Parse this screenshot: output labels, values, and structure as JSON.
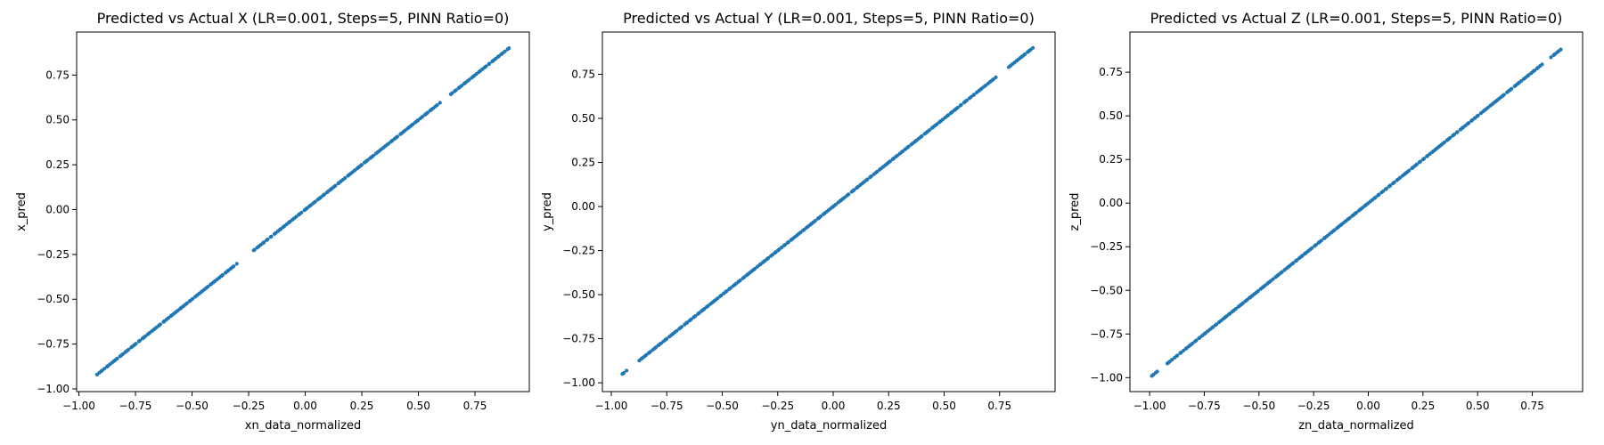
{
  "chart_data": [
    {
      "type": "scatter",
      "title": "Predicted vs Actual X (LR=0.001, Steps=5, PINN Ratio=0)",
      "xlabel": "xn_data_normalized",
      "ylabel": "x_pred",
      "xlim": [
        -1.01,
        0.99
      ],
      "ylim": [
        -1.015,
        0.99
      ],
      "xticks": [
        -1.0,
        -0.75,
        -0.5,
        -0.25,
        0.0,
        0.25,
        0.5,
        0.75
      ],
      "yticks": [
        -1.0,
        -0.75,
        -0.5,
        -0.25,
        0.0,
        0.25,
        0.5,
        0.75
      ],
      "xtick_labels": [
        "−1.00",
        "−0.75",
        "−0.50",
        "−0.25",
        "0.00",
        "0.25",
        "0.50",
        "0.75"
      ],
      "ytick_labels": [
        "−1.00",
        "−0.75",
        "−0.50",
        "−0.25",
        "0.00",
        "0.25",
        "0.50",
        "0.75"
      ],
      "color": "#1f77b4",
      "grid": false,
      "points": {
        "range": [
          -0.92,
          0.9
        ],
        "count": 220,
        "slope": 1.0,
        "intercept": 0.0,
        "gaps": [
          [
            -0.3,
            -0.24
          ],
          [
            0.6,
            0.64
          ]
        ]
      }
    },
    {
      "type": "scatter",
      "title": "Predicted vs Actual Y (LR=0.001, Steps=5, PINN Ratio=0)",
      "xlabel": "yn_data_normalized",
      "ylabel": "y_pred",
      "xlim": [
        -1.04,
        1.0
      ],
      "ylim": [
        -1.05,
        0.99
      ],
      "xticks": [
        -1.0,
        -0.75,
        -0.5,
        -0.25,
        0.0,
        0.25,
        0.5,
        0.75
      ],
      "yticks": [
        -1.0,
        -0.75,
        -0.5,
        -0.25,
        0.0,
        0.25,
        0.5,
        0.75
      ],
      "xtick_labels": [
        "−1.00",
        "−0.75",
        "−0.50",
        "−0.25",
        "0.00",
        "0.25",
        "0.50",
        "0.75"
      ],
      "ytick_labels": [
        "−1.00",
        "−0.75",
        "−0.50",
        "−0.25",
        "0.00",
        "0.25",
        "0.50",
        "0.75"
      ],
      "color": "#1f77b4",
      "grid": false,
      "points": {
        "range": [
          -0.95,
          0.9
        ],
        "count": 220,
        "slope": 1.0,
        "intercept": 0.0,
        "gaps": [
          [
            -0.93,
            -0.88
          ],
          [
            0.74,
            0.79
          ]
        ]
      }
    },
    {
      "type": "scatter",
      "title": "Predicted vs Actual Z (LR=0.001, Steps=5, PINN Ratio=0)",
      "xlabel": "zn_data_normalized",
      "ylabel": "z_pred",
      "xlim": [
        -1.09,
        0.98
      ],
      "ylim": [
        -1.08,
        0.98
      ],
      "xticks": [
        -1.0,
        -0.75,
        -0.5,
        -0.25,
        0.0,
        0.25,
        0.5,
        0.75
      ],
      "yticks": [
        -1.0,
        -0.75,
        -0.5,
        -0.25,
        0.0,
        0.25,
        0.5,
        0.75
      ],
      "xtick_labels": [
        "−1.00",
        "−0.75",
        "−0.50",
        "−0.25",
        "0.00",
        "0.25",
        "0.50",
        "0.75"
      ],
      "ytick_labels": [
        "−1.00",
        "−0.75",
        "−0.50",
        "−0.25",
        "0.00",
        "0.25",
        "0.50",
        "0.75"
      ],
      "color": "#1f77b4",
      "grid": false,
      "points": {
        "range": [
          -0.99,
          0.88
        ],
        "count": 220,
        "slope": 1.0,
        "intercept": 0.0,
        "gaps": [
          [
            -0.96,
            -0.93
          ],
          [
            0.8,
            0.83
          ]
        ]
      }
    }
  ]
}
